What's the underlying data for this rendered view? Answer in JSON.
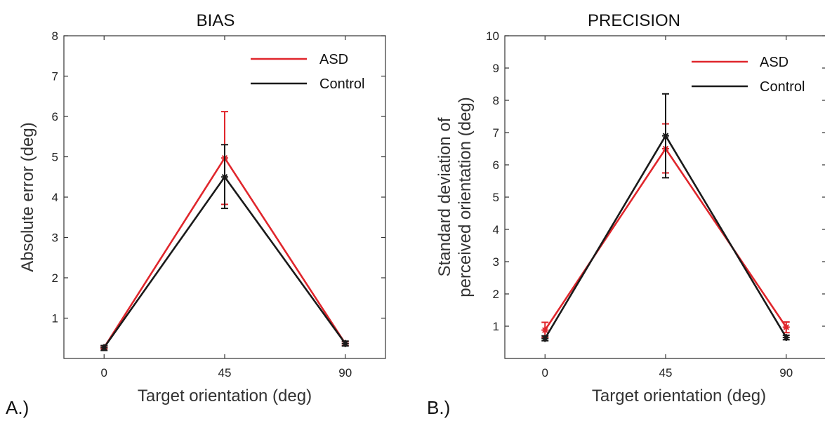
{
  "colors": {
    "asd": "#e0262c",
    "control": "#1a1a1a",
    "axis": "#333333"
  },
  "chart_data": [
    {
      "type": "line",
      "panel_label": "A.)",
      "title": "BIAS",
      "xlabel": "Target orientation (deg)",
      "ylabel": "Absolute error (deg)",
      "x": [
        0,
        45,
        90
      ],
      "xticks": [
        "0",
        "45",
        "90"
      ],
      "xlim": [
        -15,
        105
      ],
      "ylim": [
        0,
        8
      ],
      "yticks": [
        "1",
        "2",
        "3",
        "4",
        "5",
        "6",
        "7",
        "8"
      ],
      "grid": false,
      "legend_position": "top-right",
      "series": [
        {
          "name": "ASD",
          "color": "#e0262c",
          "values": [
            0.27,
            4.97,
            0.37
          ],
          "error_low": [
            0.24,
            3.82,
            0.32
          ],
          "error_high": [
            0.31,
            6.12,
            0.42
          ]
        },
        {
          "name": "Control",
          "color": "#1a1a1a",
          "values": [
            0.27,
            4.5,
            0.37
          ],
          "error_low": [
            0.2,
            3.72,
            0.31
          ],
          "error_high": [
            0.32,
            5.3,
            0.43
          ]
        }
      ]
    },
    {
      "type": "line",
      "panel_label": "B.)",
      "title": "PRECISION",
      "xlabel": "Target orientation (deg)",
      "ylabel_line1": "Standard deviation of",
      "ylabel_line2": "perceived orientation (deg)",
      "x": [
        0,
        45,
        90
      ],
      "xticks": [
        "0",
        "45",
        "90"
      ],
      "xlim": [
        -15,
        105
      ],
      "ylim": [
        0,
        10
      ],
      "yticks": [
        "1",
        "2",
        "3",
        "4",
        "5",
        "6",
        "7",
        "8",
        "9",
        "10"
      ],
      "grid": false,
      "legend_position": "top-right",
      "series": [
        {
          "name": "ASD",
          "color": "#e0262c",
          "values": [
            0.88,
            6.5,
            0.97
          ],
          "error_low": [
            0.65,
            5.75,
            0.8
          ],
          "error_high": [
            1.12,
            7.27,
            1.13
          ]
        },
        {
          "name": "Control",
          "color": "#1a1a1a",
          "values": [
            0.62,
            6.9,
            0.65
          ],
          "error_low": [
            0.55,
            5.6,
            0.58
          ],
          "error_high": [
            0.7,
            8.2,
            0.72
          ]
        }
      ]
    }
  ]
}
